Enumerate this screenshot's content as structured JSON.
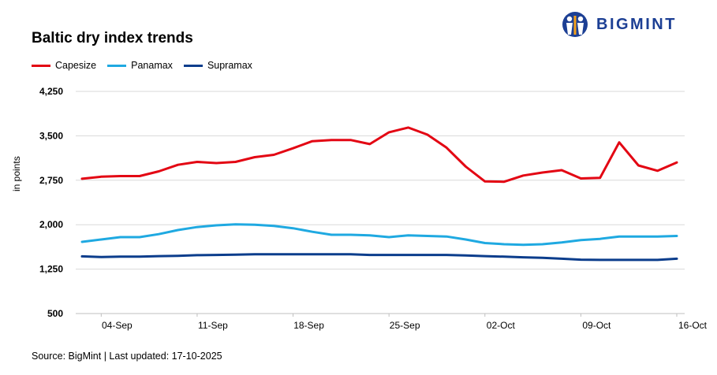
{
  "header": {
    "title": "Baltic dry index trends",
    "brand": "BIGMINT"
  },
  "footer": {
    "source": "Source: BigMint | Last updated: 17-10-2025"
  },
  "chart_data": {
    "type": "line",
    "title": "Baltic dry index trends",
    "xlabel": "",
    "ylabel": "in points",
    "ylim": [
      500,
      4250
    ],
    "yticks": [
      4250,
      3500,
      2750,
      2000,
      1250,
      500
    ],
    "ytick_labels": [
      "4,250",
      "3,500",
      "2,750",
      "2,000",
      "1,250",
      "500"
    ],
    "xticks": [
      "04-Sep",
      "11-Sep",
      "18-Sep",
      "25-Sep",
      "02-Oct",
      "09-Oct",
      "16-Oct"
    ],
    "grid": true,
    "legend": "top-left",
    "x": [
      "03-Sep",
      "04-Sep",
      "05-Sep",
      "08-Sep",
      "09-Sep",
      "10-Sep",
      "11-Sep",
      "12-Sep",
      "15-Sep",
      "16-Sep",
      "17-Sep",
      "18-Sep",
      "19-Sep",
      "22-Sep",
      "23-Sep",
      "24-Sep",
      "25-Sep",
      "26-Sep",
      "29-Sep",
      "30-Sep",
      "01-Oct",
      "02-Oct",
      "03-Oct",
      "06-Oct",
      "07-Oct",
      "08-Oct",
      "09-Oct",
      "10-Oct",
      "13-Oct",
      "14-Oct",
      "15-Oct",
      "16-Oct"
    ],
    "series": [
      {
        "name": "Capesize",
        "color": "#e30613",
        "values": [
          2775,
          2810,
          2820,
          2820,
          2900,
          3010,
          3060,
          3040,
          3060,
          3140,
          3180,
          3290,
          3410,
          3430,
          3430,
          3360,
          3560,
          3640,
          3520,
          3300,
          2980,
          2730,
          2725,
          2830,
          2880,
          2920,
          2780,
          2790,
          3390,
          3000,
          2910,
          3050
        ]
      },
      {
        "name": "Panamax",
        "color": "#1fa9e1",
        "values": [
          1710,
          1750,
          1790,
          1790,
          1840,
          1910,
          1960,
          1990,
          2005,
          2000,
          1980,
          1940,
          1880,
          1830,
          1830,
          1820,
          1790,
          1820,
          1810,
          1800,
          1750,
          1690,
          1670,
          1660,
          1670,
          1700,
          1740,
          1760,
          1800,
          1800,
          1800,
          1810
        ]
      },
      {
        "name": "Supramax",
        "color": "#0b3d8c",
        "values": [
          1465,
          1455,
          1460,
          1460,
          1470,
          1475,
          1485,
          1490,
          1495,
          1500,
          1500,
          1500,
          1500,
          1500,
          1500,
          1490,
          1490,
          1490,
          1490,
          1490,
          1480,
          1470,
          1460,
          1450,
          1440,
          1425,
          1410,
          1405,
          1405,
          1405,
          1405,
          1425
        ]
      }
    ]
  }
}
